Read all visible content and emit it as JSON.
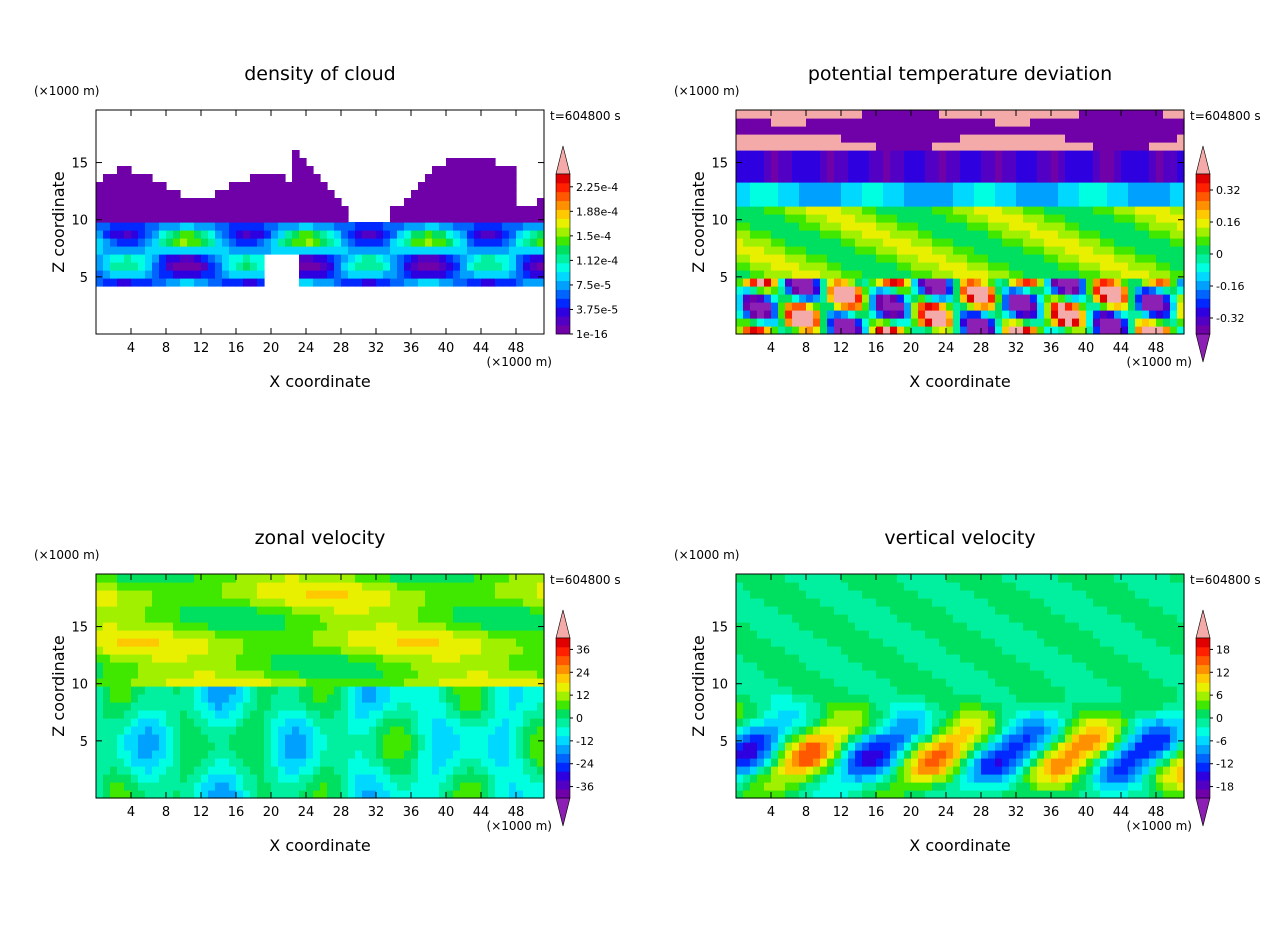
{
  "chart_data": [
    {
      "type": "heatmap",
      "title": "density of cloud",
      "xlabel": "X coordinate",
      "ylabel": "Z coordinate",
      "x_unit": "(×1000 m)",
      "y_unit": "(×1000 m)",
      "time_label": "t=604800 s",
      "xlim": [
        0,
        51.2
      ],
      "ylim": [
        0,
        19.6
      ],
      "x_ticks": [
        4,
        8,
        12,
        16,
        20,
        24,
        28,
        32,
        36,
        40,
        44,
        48
      ],
      "y_ticks": [
        5,
        10,
        15
      ],
      "colorbar_labels": [
        "1e-16",
        "3.75e-5",
        "7.5e-5",
        "1.12e-4",
        "1.5e-4",
        "1.88e-4",
        "2.25e-4"
      ],
      "colorbar_extend": "max"
    },
    {
      "type": "heatmap",
      "title": "potential temperature deviation",
      "xlabel": "X coordinate",
      "ylabel": "Z coordinate",
      "x_unit": "(×1000 m)",
      "y_unit": "(×1000 m)",
      "time_label": "t=604800 s",
      "xlim": [
        0,
        51.2
      ],
      "ylim": [
        0,
        19.6
      ],
      "x_ticks": [
        4,
        8,
        12,
        16,
        20,
        24,
        28,
        32,
        36,
        40,
        44,
        48
      ],
      "y_ticks": [
        5,
        10,
        15
      ],
      "colorbar_labels": [
        "-0.32",
        "-0.16",
        "0",
        "0.16",
        "0.32"
      ],
      "colorbar_extend": "both"
    },
    {
      "type": "heatmap",
      "title": "zonal velocity",
      "xlabel": "X coordinate",
      "ylabel": "Z coordinate",
      "x_unit": "(×1000 m)",
      "y_unit": "(×1000 m)",
      "time_label": "t=604800 s",
      "xlim": [
        0,
        51.2
      ],
      "ylim": [
        0,
        19.6
      ],
      "x_ticks": [
        4,
        8,
        12,
        16,
        20,
        24,
        28,
        32,
        36,
        40,
        44,
        48
      ],
      "y_ticks": [
        5,
        10,
        15
      ],
      "colorbar_labels": [
        "-36",
        "-24",
        "-12",
        "0",
        "12",
        "24",
        "36"
      ],
      "colorbar_extend": "both"
    },
    {
      "type": "heatmap",
      "title": "vertical velocity",
      "xlabel": "X coordinate",
      "ylabel": "Z coordinate",
      "x_unit": "(×1000 m)",
      "y_unit": "(×1000 m)",
      "time_label": "t=604800 s",
      "xlim": [
        0,
        51.2
      ],
      "ylim": [
        0,
        19.6
      ],
      "x_ticks": [
        4,
        8,
        12,
        16,
        20,
        24,
        28,
        32,
        36,
        40,
        44,
        48
      ],
      "y_ticks": [
        5,
        10,
        15
      ],
      "colorbar_labels": [
        "-18",
        "-12",
        "-6",
        "0",
        "6",
        "12",
        "18"
      ],
      "colorbar_extend": "both"
    }
  ],
  "colormap": [
    "#7000a8",
    "#5200c4",
    "#2e00e0",
    "#0028ff",
    "#0064ff",
    "#00a0ff",
    "#00d8ff",
    "#00ffe0",
    "#00f0a0",
    "#00e060",
    "#40e800",
    "#a0f000",
    "#e8f000",
    "#ffc800",
    "#ff9000",
    "#ff5800",
    "#ff2000",
    "#e00000"
  ],
  "extend_max_color": "#f4aaa8",
  "extend_min_color": "#8c20b4"
}
